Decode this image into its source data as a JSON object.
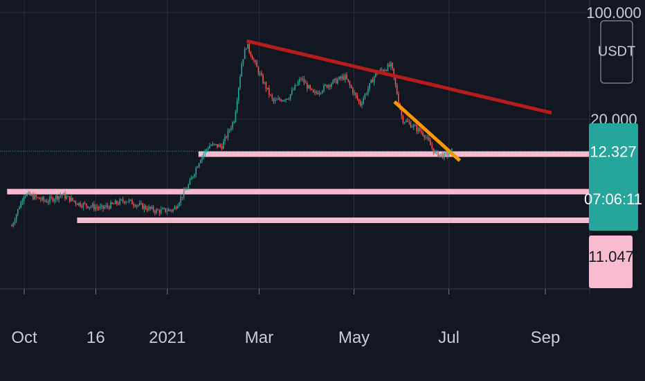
{
  "chart_data": {
    "type": "candlestick",
    "symbol_unit": "USDT",
    "price_scale": "log",
    "price_ticks": [
      {
        "label": "100.000",
        "value": 100
      },
      {
        "label": "20.000",
        "value": 20
      }
    ],
    "time_ticks": [
      {
        "label": "Oct",
        "date": "2020-10-01"
      },
      {
        "label": "16",
        "date": "2020-11-16"
      },
      {
        "label": "2021",
        "date": "2021-01-01"
      },
      {
        "label": "Mar",
        "date": "2021-03-01"
      },
      {
        "label": "May",
        "date": "2021-05-01"
      },
      {
        "label": "Jul",
        "date": "2021-07-01"
      },
      {
        "label": "Sep",
        "date": "2021-09-01"
      }
    ],
    "price_badges": [
      {
        "label": "12.327",
        "value": 12.327,
        "color": "#26a69a"
      },
      {
        "label": "07:06:11",
        "color": "#26a69a"
      },
      {
        "label": "11.047",
        "value": 11.047,
        "color": "#f8bbd0"
      }
    ],
    "last_price": 12.327,
    "closes": [
      {
        "date": "2020-09-23",
        "value": 4.0
      },
      {
        "date": "2020-10-01",
        "value": 6.5
      },
      {
        "date": "2020-10-15",
        "value": 5.8
      },
      {
        "date": "2020-10-25",
        "value": 6.4
      },
      {
        "date": "2020-11-05",
        "value": 5.6
      },
      {
        "date": "2020-11-20",
        "value": 5.2
      },
      {
        "date": "2020-12-05",
        "value": 5.9
      },
      {
        "date": "2020-12-15",
        "value": 5.4
      },
      {
        "date": "2020-12-25",
        "value": 5.0
      },
      {
        "date": "2021-01-05",
        "value": 5.1
      },
      {
        "date": "2021-01-15",
        "value": 7.5
      },
      {
        "date": "2021-01-22",
        "value": 11.0
      },
      {
        "date": "2021-01-28",
        "value": 13.5
      },
      {
        "date": "2021-02-05",
        "value": 13.3
      },
      {
        "date": "2021-02-13",
        "value": 20.0
      },
      {
        "date": "2021-02-18",
        "value": 48.0
      },
      {
        "date": "2021-02-21",
        "value": 62.0
      },
      {
        "date": "2021-03-01",
        "value": 40.0
      },
      {
        "date": "2021-03-10",
        "value": 26.0
      },
      {
        "date": "2021-03-20",
        "value": 28.0
      },
      {
        "date": "2021-03-28",
        "value": 37.0
      },
      {
        "date": "2021-04-05",
        "value": 29.0
      },
      {
        "date": "2021-04-15",
        "value": 34.0
      },
      {
        "date": "2021-04-25",
        "value": 38.0
      },
      {
        "date": "2021-05-05",
        "value": 25.0
      },
      {
        "date": "2021-05-15",
        "value": 40.0
      },
      {
        "date": "2021-05-25",
        "value": 45.0
      },
      {
        "date": "2021-06-01",
        "value": 20.0
      },
      {
        "date": "2021-06-08",
        "value": 18.0
      },
      {
        "date": "2021-06-15",
        "value": 16.0
      },
      {
        "date": "2021-06-22",
        "value": 12.0
      },
      {
        "date": "2021-06-28",
        "value": 11.5
      },
      {
        "date": "2021-07-03",
        "value": 12.327
      }
    ],
    "trendlines": [
      {
        "color": "#b71c1c",
        "from": {
          "date": "2021-02-21",
          "value": 65.0
        },
        "to": {
          "date": "2021-09-05",
          "value": 22.0
        }
      },
      {
        "color": "#ff9800",
        "from": {
          "date": "2021-05-27",
          "value": 26.0
        },
        "to": {
          "date": "2021-07-08",
          "value": 10.7
        }
      }
    ],
    "horizontal_zones": [
      {
        "color": "#f8bbd0",
        "value": 11.8,
        "from_date": "2021-01-21"
      },
      {
        "color": "#f8bbd0",
        "value": 6.7,
        "from_date": "2020-09-20"
      },
      {
        "color": "#f8bbd0",
        "value": 4.35,
        "from_date": "2020-11-04"
      }
    ],
    "grid": true,
    "colors": {
      "background": "#131722",
      "up": "#26a69a",
      "down": "#ef5350",
      "grid": "#2a2e39",
      "last_price_line": "#26a69a"
    }
  }
}
